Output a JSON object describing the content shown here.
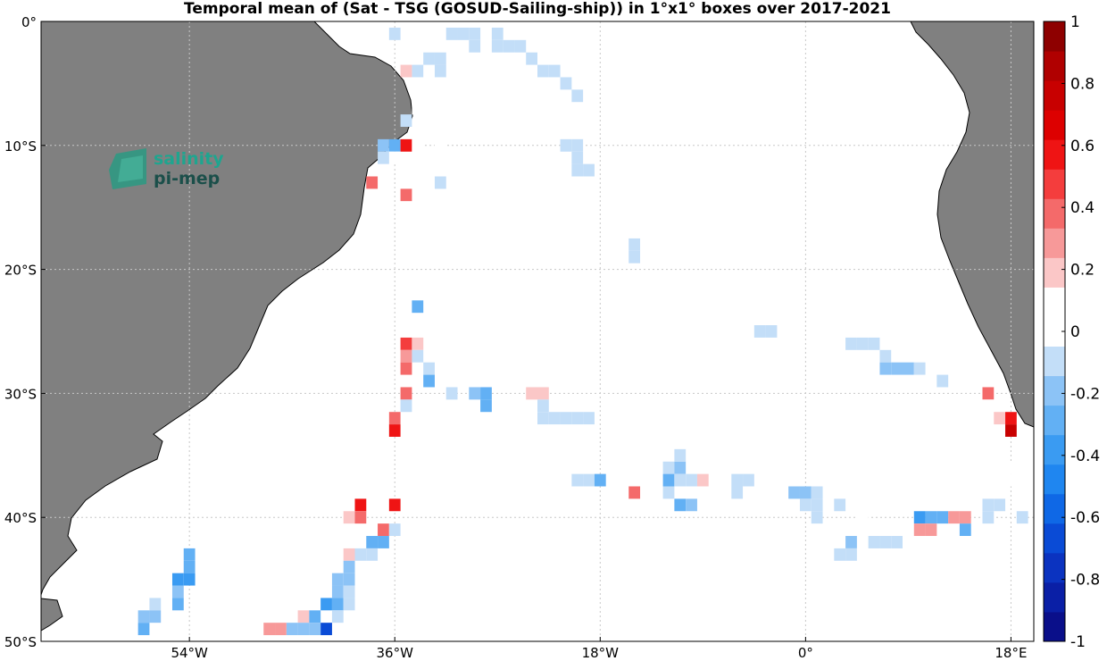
{
  "chart_data": {
    "type": "heatmap",
    "title": "Temporal mean of (Sat - TSG (GOSUD-Sailing-ship)) in 1°x1° boxes over 2017-2021",
    "xlim": [
      -67,
      20
    ],
    "ylim": [
      -50,
      0
    ],
    "xticks": [
      {
        "value": -54,
        "label": "54°W"
      },
      {
        "value": -36,
        "label": "36°W"
      },
      {
        "value": -18,
        "label": "18°W"
      },
      {
        "value": 0,
        "label": "0°"
      },
      {
        "value": 18,
        "label": "18°E"
      }
    ],
    "yticks": [
      {
        "value": 0,
        "label": "0°"
      },
      {
        "value": -10,
        "label": "10°S"
      },
      {
        "value": -20,
        "label": "20°S"
      },
      {
        "value": -30,
        "label": "30°S"
      },
      {
        "value": -40,
        "label": "40°S"
      },
      {
        "value": -50,
        "label": "50°S"
      }
    ],
    "grid": "dotted",
    "colorbar": {
      "range": [
        -1,
        1
      ],
      "step": 0.1,
      "ticks": [
        {
          "value": 1,
          "label": "1"
        },
        {
          "value": 0.8,
          "label": "0.8"
        },
        {
          "value": 0.6,
          "label": "0.6"
        },
        {
          "value": 0.4,
          "label": "0.4"
        },
        {
          "value": 0.2,
          "label": "0.2"
        },
        {
          "value": 0,
          "label": "0"
        },
        {
          "value": -0.2,
          "label": "-0.2"
        },
        {
          "value": -0.4,
          "label": "-0.4"
        },
        {
          "value": -0.6,
          "label": "-0.6"
        },
        {
          "value": -0.8,
          "label": "-0.8"
        },
        {
          "value": -1,
          "label": "-1"
        }
      ],
      "colors": [
        "#0a0f8a",
        "#0a1fa6",
        "#0b33c0",
        "#0a4bd6",
        "#0f68e6",
        "#1f86f0",
        "#3a9bf2",
        "#62b0f4",
        "#8cc3f6",
        "#c3def8",
        "#ffffff",
        "#ffffff",
        "#fbc7c7",
        "#f79999",
        "#f46a6a",
        "#f43d3d",
        "#ef1414",
        "#dd0000",
        "#c80000",
        "#b00000",
        "#8e0000"
      ]
    },
    "cells": [
      {
        "lon": -36,
        "lat": -1,
        "v": -0.1
      },
      {
        "lon": -31,
        "lat": -1,
        "v": -0.1
      },
      {
        "lon": -30,
        "lat": -1,
        "v": -0.1
      },
      {
        "lon": -29,
        "lat": -1,
        "v": -0.1
      },
      {
        "lon": -27,
        "lat": -1,
        "v": -0.1
      },
      {
        "lon": -27,
        "lat": -2,
        "v": -0.1
      },
      {
        "lon": -26,
        "lat": -2,
        "v": -0.1
      },
      {
        "lon": -25,
        "lat": -2,
        "v": -0.1
      },
      {
        "lon": -24,
        "lat": -3,
        "v": -0.1
      },
      {
        "lon": -23,
        "lat": -4,
        "v": -0.1
      },
      {
        "lon": -22,
        "lat": -4,
        "v": -0.1
      },
      {
        "lon": -21,
        "lat": -5,
        "v": -0.1
      },
      {
        "lon": -20,
        "lat": -6,
        "v": -0.1
      },
      {
        "lon": -29,
        "lat": -2,
        "v": -0.1
      },
      {
        "lon": -34,
        "lat": -3,
        "v": 0.15
      },
      {
        "lon": -33,
        "lat": -3,
        "v": -0.1
      },
      {
        "lon": -32,
        "lat": -3,
        "v": -0.1
      },
      {
        "lon": -32,
        "lat": -4,
        "v": -0.1
      },
      {
        "lon": -34,
        "lat": -4,
        "v": -0.1
      },
      {
        "lon": -35,
        "lat": -4,
        "v": 0.2
      },
      {
        "lon": -34,
        "lat": -6,
        "v": 0.15
      },
      {
        "lon": -34,
        "lat": -7,
        "v": 0.15
      },
      {
        "lon": -32,
        "lat": -7,
        "v": 0.15
      },
      {
        "lon": -35,
        "lat": -8,
        "v": -0.1
      },
      {
        "lon": -37,
        "lat": -10,
        "v": -0.2
      },
      {
        "lon": -36,
        "lat": -10,
        "v": -0.35
      },
      {
        "lon": -35,
        "lat": -10,
        "v": 0.65
      },
      {
        "lon": -36,
        "lat": -11,
        "v": 0.15
      },
      {
        "lon": -37,
        "lat": -11,
        "v": -0.1
      },
      {
        "lon": -34,
        "lat": -10,
        "v": 0.15
      },
      {
        "lon": -34,
        "lat": -11,
        "v": 0.15
      },
      {
        "lon": -34,
        "lat": -12,
        "v": 0.15
      },
      {
        "lon": -32,
        "lat": -10,
        "v": 0.15
      },
      {
        "lon": -32,
        "lat": -13,
        "v": -0.1
      },
      {
        "lon": -38,
        "lat": -13,
        "v": 0.45
      },
      {
        "lon": -35,
        "lat": -14,
        "v": 0.35
      },
      {
        "lon": -35,
        "lat": -15,
        "v": 0.15
      },
      {
        "lon": -35,
        "lat": -16,
        "v": 0.15
      },
      {
        "lon": -21,
        "lat": -10,
        "v": -0.1
      },
      {
        "lon": -20,
        "lat": -10,
        "v": -0.1
      },
      {
        "lon": -20,
        "lat": -11,
        "v": -0.1
      },
      {
        "lon": -20,
        "lat": -12,
        "v": -0.1
      },
      {
        "lon": -19,
        "lat": -12,
        "v": -0.1
      },
      {
        "lon": -15,
        "lat": -18,
        "v": -0.1
      },
      {
        "lon": -15,
        "lat": -19,
        "v": -0.1
      },
      {
        "lon": -28,
        "lat": -22,
        "v": 0.15
      },
      {
        "lon": -34,
        "lat": -23,
        "v": -0.35
      },
      {
        "lon": -35,
        "lat": -26,
        "v": 0.5
      },
      {
        "lon": -34,
        "lat": -26,
        "v": 0.2
      },
      {
        "lon": -34,
        "lat": -27,
        "v": -0.1
      },
      {
        "lon": -35,
        "lat": -27,
        "v": 0.3
      },
      {
        "lon": -35,
        "lat": -28,
        "v": 0.35
      },
      {
        "lon": -35,
        "lat": -30,
        "v": 0.4
      },
      {
        "lon": -35,
        "lat": -31,
        "v": -0.1
      },
      {
        "lon": -33,
        "lat": -28,
        "v": -0.1
      },
      {
        "lon": -33,
        "lat": -29,
        "v": -0.3
      },
      {
        "lon": -36,
        "lat": -32,
        "v": 0.4
      },
      {
        "lon": -36,
        "lat": -33,
        "v": 0.6
      },
      {
        "lon": -27,
        "lat": -25,
        "v": 0.15
      },
      {
        "lon": -26,
        "lat": -25,
        "v": 0.15
      },
      {
        "lon": -25,
        "lat": -25,
        "v": 0.15
      },
      {
        "lon": -25,
        "lat": -26,
        "v": 0.15
      },
      {
        "lon": -31,
        "lat": -30,
        "v": -0.1
      },
      {
        "lon": -29,
        "lat": -30,
        "v": -0.2
      },
      {
        "lon": -28,
        "lat": -30,
        "v": -0.35
      },
      {
        "lon": -28,
        "lat": -31,
        "v": -0.3
      },
      {
        "lon": -23,
        "lat": -28,
        "v": 0.15
      },
      {
        "lon": -24,
        "lat": -30,
        "v": 0.2
      },
      {
        "lon": -23,
        "lat": -30,
        "v": 0.2
      },
      {
        "lon": -23,
        "lat": -31,
        "v": -0.1
      },
      {
        "lon": -23,
        "lat": -32,
        "v": -0.1
      },
      {
        "lon": -22,
        "lat": -32,
        "v": -0.1
      },
      {
        "lon": -21,
        "lat": -32,
        "v": -0.1
      },
      {
        "lon": -20,
        "lat": -32,
        "v": -0.1
      },
      {
        "lon": -19,
        "lat": -32,
        "v": -0.1
      },
      {
        "lon": -5,
        "lat": -24,
        "v": 0.15
      },
      {
        "lon": -4,
        "lat": -25,
        "v": -0.1
      },
      {
        "lon": -3,
        "lat": -25,
        "v": -0.1
      },
      {
        "lon": 2,
        "lat": -26,
        "v": 0.15
      },
      {
        "lon": 4,
        "lat": -26,
        "v": -0.1
      },
      {
        "lon": 5,
        "lat": -26,
        "v": -0.1
      },
      {
        "lon": 6,
        "lat": -26,
        "v": -0.1
      },
      {
        "lon": 7,
        "lat": -27,
        "v": -0.1
      },
      {
        "lon": 7,
        "lat": -28,
        "v": -0.2
      },
      {
        "lon": 8,
        "lat": -28,
        "v": -0.2
      },
      {
        "lon": 9,
        "lat": -28,
        "v": -0.2
      },
      {
        "lon": 10,
        "lat": -28,
        "v": -0.1
      },
      {
        "lon": 12,
        "lat": -29,
        "v": -0.1
      },
      {
        "lon": 16,
        "lat": -30,
        "v": 0.45
      },
      {
        "lon": 16,
        "lat": -31,
        "v": 0.15
      },
      {
        "lon": 17,
        "lat": -32,
        "v": 0.2
      },
      {
        "lon": 18,
        "lat": -32,
        "v": 0.6
      },
      {
        "lon": 18,
        "lat": -33,
        "v": 0.75
      },
      {
        "lon": 18,
        "lat": -36,
        "v": 0.15
      },
      {
        "lon": 18,
        "lat": -37,
        "v": 0.15
      },
      {
        "lon": -20,
        "lat": -37,
        "v": -0.1
      },
      {
        "lon": -19,
        "lat": -37,
        "v": -0.1
      },
      {
        "lon": -18,
        "lat": -37,
        "v": -0.3
      },
      {
        "lon": -15,
        "lat": -38,
        "v": 0.45
      },
      {
        "lon": -12,
        "lat": -36,
        "v": -0.1
      },
      {
        "lon": -11,
        "lat": -36,
        "v": -0.2
      },
      {
        "lon": -11,
        "lat": -35,
        "v": -0.1
      },
      {
        "lon": -12,
        "lat": -37,
        "v": -0.35
      },
      {
        "lon": -11,
        "lat": -37,
        "v": -0.1
      },
      {
        "lon": -10,
        "lat": -37,
        "v": -0.1
      },
      {
        "lon": -9,
        "lat": -37,
        "v": 0.2
      },
      {
        "lon": -12,
        "lat": -38,
        "v": -0.1
      },
      {
        "lon": -11,
        "lat": -39,
        "v": -0.35
      },
      {
        "lon": -10,
        "lat": -39,
        "v": -0.2
      },
      {
        "lon": -6,
        "lat": -37,
        "v": -0.1
      },
      {
        "lon": -5,
        "lat": -37,
        "v": -0.1
      },
      {
        "lon": -6,
        "lat": -38,
        "v": -0.1
      },
      {
        "lon": -3,
        "lat": -37,
        "v": 0.15
      },
      {
        "lon": -1,
        "lat": -38,
        "v": -0.2
      },
      {
        "lon": 0,
        "lat": -38,
        "v": -0.2
      },
      {
        "lon": 0,
        "lat": -39,
        "v": -0.1
      },
      {
        "lon": 1,
        "lat": -38,
        "v": -0.1
      },
      {
        "lon": 1,
        "lat": -39,
        "v": -0.1
      },
      {
        "lon": 1,
        "lat": -40,
        "v": -0.1
      },
      {
        "lon": 3,
        "lat": -39,
        "v": -0.1
      },
      {
        "lon": 2,
        "lat": -41,
        "v": 0.15
      },
      {
        "lon": 5,
        "lat": -40,
        "v": 0.15
      },
      {
        "lon": 4,
        "lat": -42,
        "v": -0.2
      },
      {
        "lon": 3,
        "lat": -43,
        "v": -0.1
      },
      {
        "lon": 4,
        "lat": -43,
        "v": -0.1
      },
      {
        "lon": 6,
        "lat": -42,
        "v": -0.1
      },
      {
        "lon": 7,
        "lat": -42,
        "v": -0.1
      },
      {
        "lon": 8,
        "lat": -42,
        "v": -0.1
      },
      {
        "lon": 10,
        "lat": -40,
        "v": -0.4
      },
      {
        "lon": 11,
        "lat": -40,
        "v": -0.3
      },
      {
        "lon": 12,
        "lat": -40,
        "v": -0.3
      },
      {
        "lon": 13,
        "lat": -40,
        "v": 0.3
      },
      {
        "lon": 14,
        "lat": -40,
        "v": 0.3
      },
      {
        "lon": 10,
        "lat": -41,
        "v": 0.3
      },
      {
        "lon": 11,
        "lat": -41,
        "v": 0.3
      },
      {
        "lon": 14,
        "lat": -41,
        "v": -0.3
      },
      {
        "lon": 16,
        "lat": -39,
        "v": -0.1
      },
      {
        "lon": 17,
        "lat": -39,
        "v": -0.1
      },
      {
        "lon": 16,
        "lat": -40,
        "v": -0.1
      },
      {
        "lon": 19,
        "lat": -40,
        "v": -0.1
      },
      {
        "lon": -36,
        "lat": -39,
        "v": 0.65
      },
      {
        "lon": -39,
        "lat": -39,
        "v": 0.55
      },
      {
        "lon": -40,
        "lat": -40,
        "v": 0.2
      },
      {
        "lon": -39,
        "lat": -40,
        "v": 0.4
      },
      {
        "lon": -37,
        "lat": -41,
        "v": 0.4
      },
      {
        "lon": -36,
        "lat": -41,
        "v": -0.1
      },
      {
        "lon": -38,
        "lat": -42,
        "v": -0.35
      },
      {
        "lon": -37,
        "lat": -42,
        "v": -0.3
      },
      {
        "lon": -40,
        "lat": -43,
        "v": 0.2
      },
      {
        "lon": -39,
        "lat": -43,
        "v": -0.1
      },
      {
        "lon": -38,
        "lat": -43,
        "v": -0.1
      },
      {
        "lon": -40,
        "lat": -44,
        "v": -0.2
      },
      {
        "lon": -41,
        "lat": -45,
        "v": -0.2
      },
      {
        "lon": -40,
        "lat": -45,
        "v": -0.2
      },
      {
        "lon": -41,
        "lat": -46,
        "v": -0.2
      },
      {
        "lon": -40,
        "lat": -46,
        "v": -0.1
      },
      {
        "lon": -42,
        "lat": -47,
        "v": -0.4
      },
      {
        "lon": -41,
        "lat": -47,
        "v": -0.35
      },
      {
        "lon": -40,
        "lat": -47,
        "v": -0.1
      },
      {
        "lon": -41,
        "lat": -48,
        "v": -0.1
      },
      {
        "lon": -44,
        "lat": -48,
        "v": 0.2
      },
      {
        "lon": -43,
        "lat": -48,
        "v": -0.3
      },
      {
        "lon": -44,
        "lat": -49,
        "v": -0.2
      },
      {
        "lon": -43,
        "lat": -49,
        "v": -0.2
      },
      {
        "lon": -42,
        "lat": -49,
        "v": -0.75
      },
      {
        "lon": -45,
        "lat": -49,
        "v": -0.2
      },
      {
        "lon": -47,
        "lat": -49,
        "v": 0.3
      },
      {
        "lon": -46,
        "lat": -49,
        "v": 0.3
      },
      {
        "lon": -54,
        "lat": -43,
        "v": -0.35
      },
      {
        "lon": -54,
        "lat": -44,
        "v": -0.35
      },
      {
        "lon": -55,
        "lat": -45,
        "v": -0.45
      },
      {
        "lon": -54,
        "lat": -45,
        "v": -0.45
      },
      {
        "lon": -55,
        "lat": -46,
        "v": -0.2
      },
      {
        "lon": -55,
        "lat": -47,
        "v": -0.35
      },
      {
        "lon": -57,
        "lat": -47,
        "v": -0.1
      },
      {
        "lon": -58,
        "lat": -48,
        "v": -0.2
      },
      {
        "lon": -57,
        "lat": -48,
        "v": -0.2
      },
      {
        "lon": -58,
        "lat": -49,
        "v": -0.3
      }
    ]
  },
  "logo": {
    "line1": "salinity",
    "line2": "pi-mep"
  },
  "colors": {
    "land": "#808080",
    "coast": "#000000",
    "grid": "#c8c8c8"
  }
}
